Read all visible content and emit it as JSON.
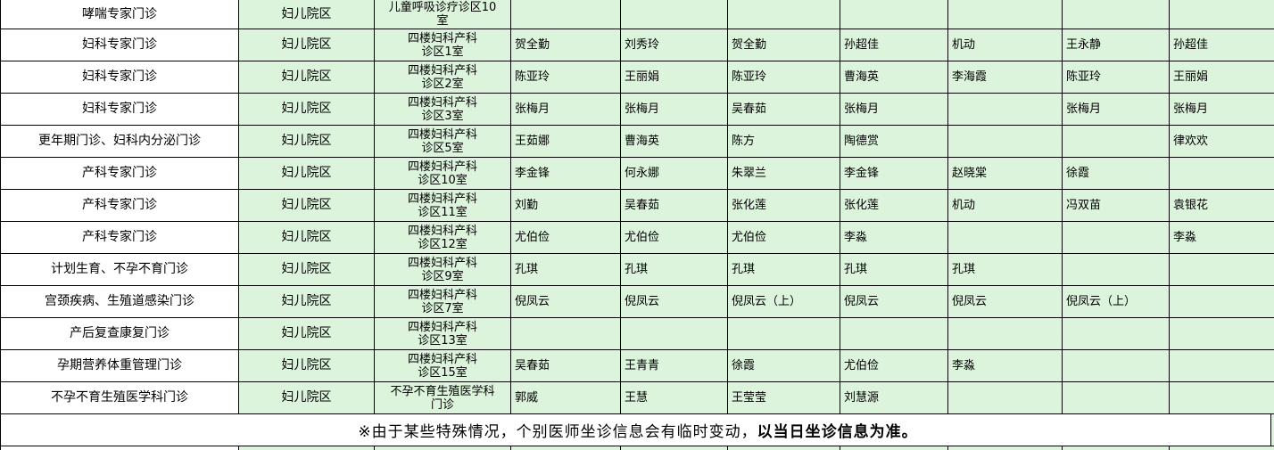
{
  "colors": {
    "cell_green": "#dcf3dc",
    "cell_white": "#ffffff",
    "border": "#000000",
    "text": "#000000"
  },
  "schedule": {
    "rows": [
      {
        "clinic": "哮喘专家门诊",
        "campus": "妇儿院区",
        "room": "儿童呼吸诊疗诊区10\n室",
        "days": [
          "",
          "",
          "",
          "",
          "",
          "",
          ""
        ]
      },
      {
        "clinic": "妇科专家门诊",
        "campus": "妇儿院区",
        "room": "四楼妇科产科\n诊区1室",
        "days": [
          "贺全勤",
          "刘秀玲",
          "贺全勤",
          "孙超佳",
          "机动",
          "王永静",
          "孙超佳"
        ]
      },
      {
        "clinic": "妇科专家门诊",
        "campus": "妇儿院区",
        "room": "四楼妇科产科\n诊区2室",
        "days": [
          "陈亚玲",
          "王丽娟",
          "陈亚玲",
          "曹海英",
          "李海霞",
          "陈亚玲",
          "王丽娟"
        ]
      },
      {
        "clinic": "妇科专家门诊",
        "campus": "妇儿院区",
        "room": "四楼妇科产科\n诊区3室",
        "days": [
          "张梅月",
          "张梅月",
          "吴春茹",
          "张梅月",
          "",
          "张梅月",
          "张梅月"
        ]
      },
      {
        "clinic": "更年期门诊、妇科内分泌门诊",
        "campus": "妇儿院区",
        "room": "四楼妇科产科\n诊区5室",
        "days": [
          "王茹娜",
          "曹海英",
          "陈方",
          "陶德赏",
          "",
          "",
          "律欢欢"
        ]
      },
      {
        "clinic": "产科专家门诊",
        "campus": "妇儿院区",
        "room": "四楼妇科产科\n诊区10室",
        "days": [
          "李金锋",
          "何永娜",
          "朱翠兰",
          "李金锋",
          "赵晓棠",
          "徐霞",
          ""
        ]
      },
      {
        "clinic": "产科专家门诊",
        "campus": "妇儿院区",
        "room": "四楼妇科产科\n诊区11室",
        "days": [
          "刘勤",
          "吴春茹",
          "张化莲",
          "张化莲",
          "机动",
          "冯双苗",
          "袁银花"
        ]
      },
      {
        "clinic": "产科专家门诊",
        "campus": "妇儿院区",
        "room": "四楼妇科产科\n诊区12室",
        "days": [
          "尤伯俭",
          "尤伯俭",
          "尤伯俭",
          "李淼",
          "",
          "",
          "李淼"
        ]
      },
      {
        "clinic": "计划生育、不孕不育门诊",
        "campus": "妇儿院区",
        "room": "四楼妇科产科\n诊区9室",
        "days": [
          "孔琪",
          "孔琪",
          "孔琪",
          "孔琪",
          "孔琪",
          "",
          ""
        ]
      },
      {
        "clinic": "宫颈疾病、生殖道感染门诊",
        "campus": "妇儿院区",
        "room": "四楼妇科产科\n诊区7室",
        "days": [
          "倪凤云",
          "倪凤云",
          "倪凤云（上）",
          "倪凤云",
          "倪凤云",
          "倪凤云（上）",
          ""
        ]
      },
      {
        "clinic": "产后复查康复门诊",
        "campus": "妇儿院区",
        "room": "四楼妇科产科\n诊区13室",
        "days": [
          "",
          "",
          "",
          "",
          "",
          "",
          ""
        ]
      },
      {
        "clinic": "孕期营养体重管理门诊",
        "campus": "妇儿院区",
        "room": "四楼妇科产科\n诊区15室",
        "days": [
          "吴春茹",
          "王青青",
          "徐霞",
          "尤伯俭",
          "李淼",
          "",
          ""
        ]
      },
      {
        "clinic": "不孕不育生殖医学科门诊",
        "campus": "妇儿院区",
        "room": "不孕不育生殖医学科\n门诊",
        "days": [
          "郭威",
          "王慧",
          "王莹莹",
          "刘慧源",
          "",
          "",
          ""
        ]
      }
    ]
  },
  "footer": {
    "notice_regular": "※由于某些特殊情况，个别医师坐诊信息会有临时变动，",
    "notice_bold": "以当日坐诊信息为准。"
  }
}
